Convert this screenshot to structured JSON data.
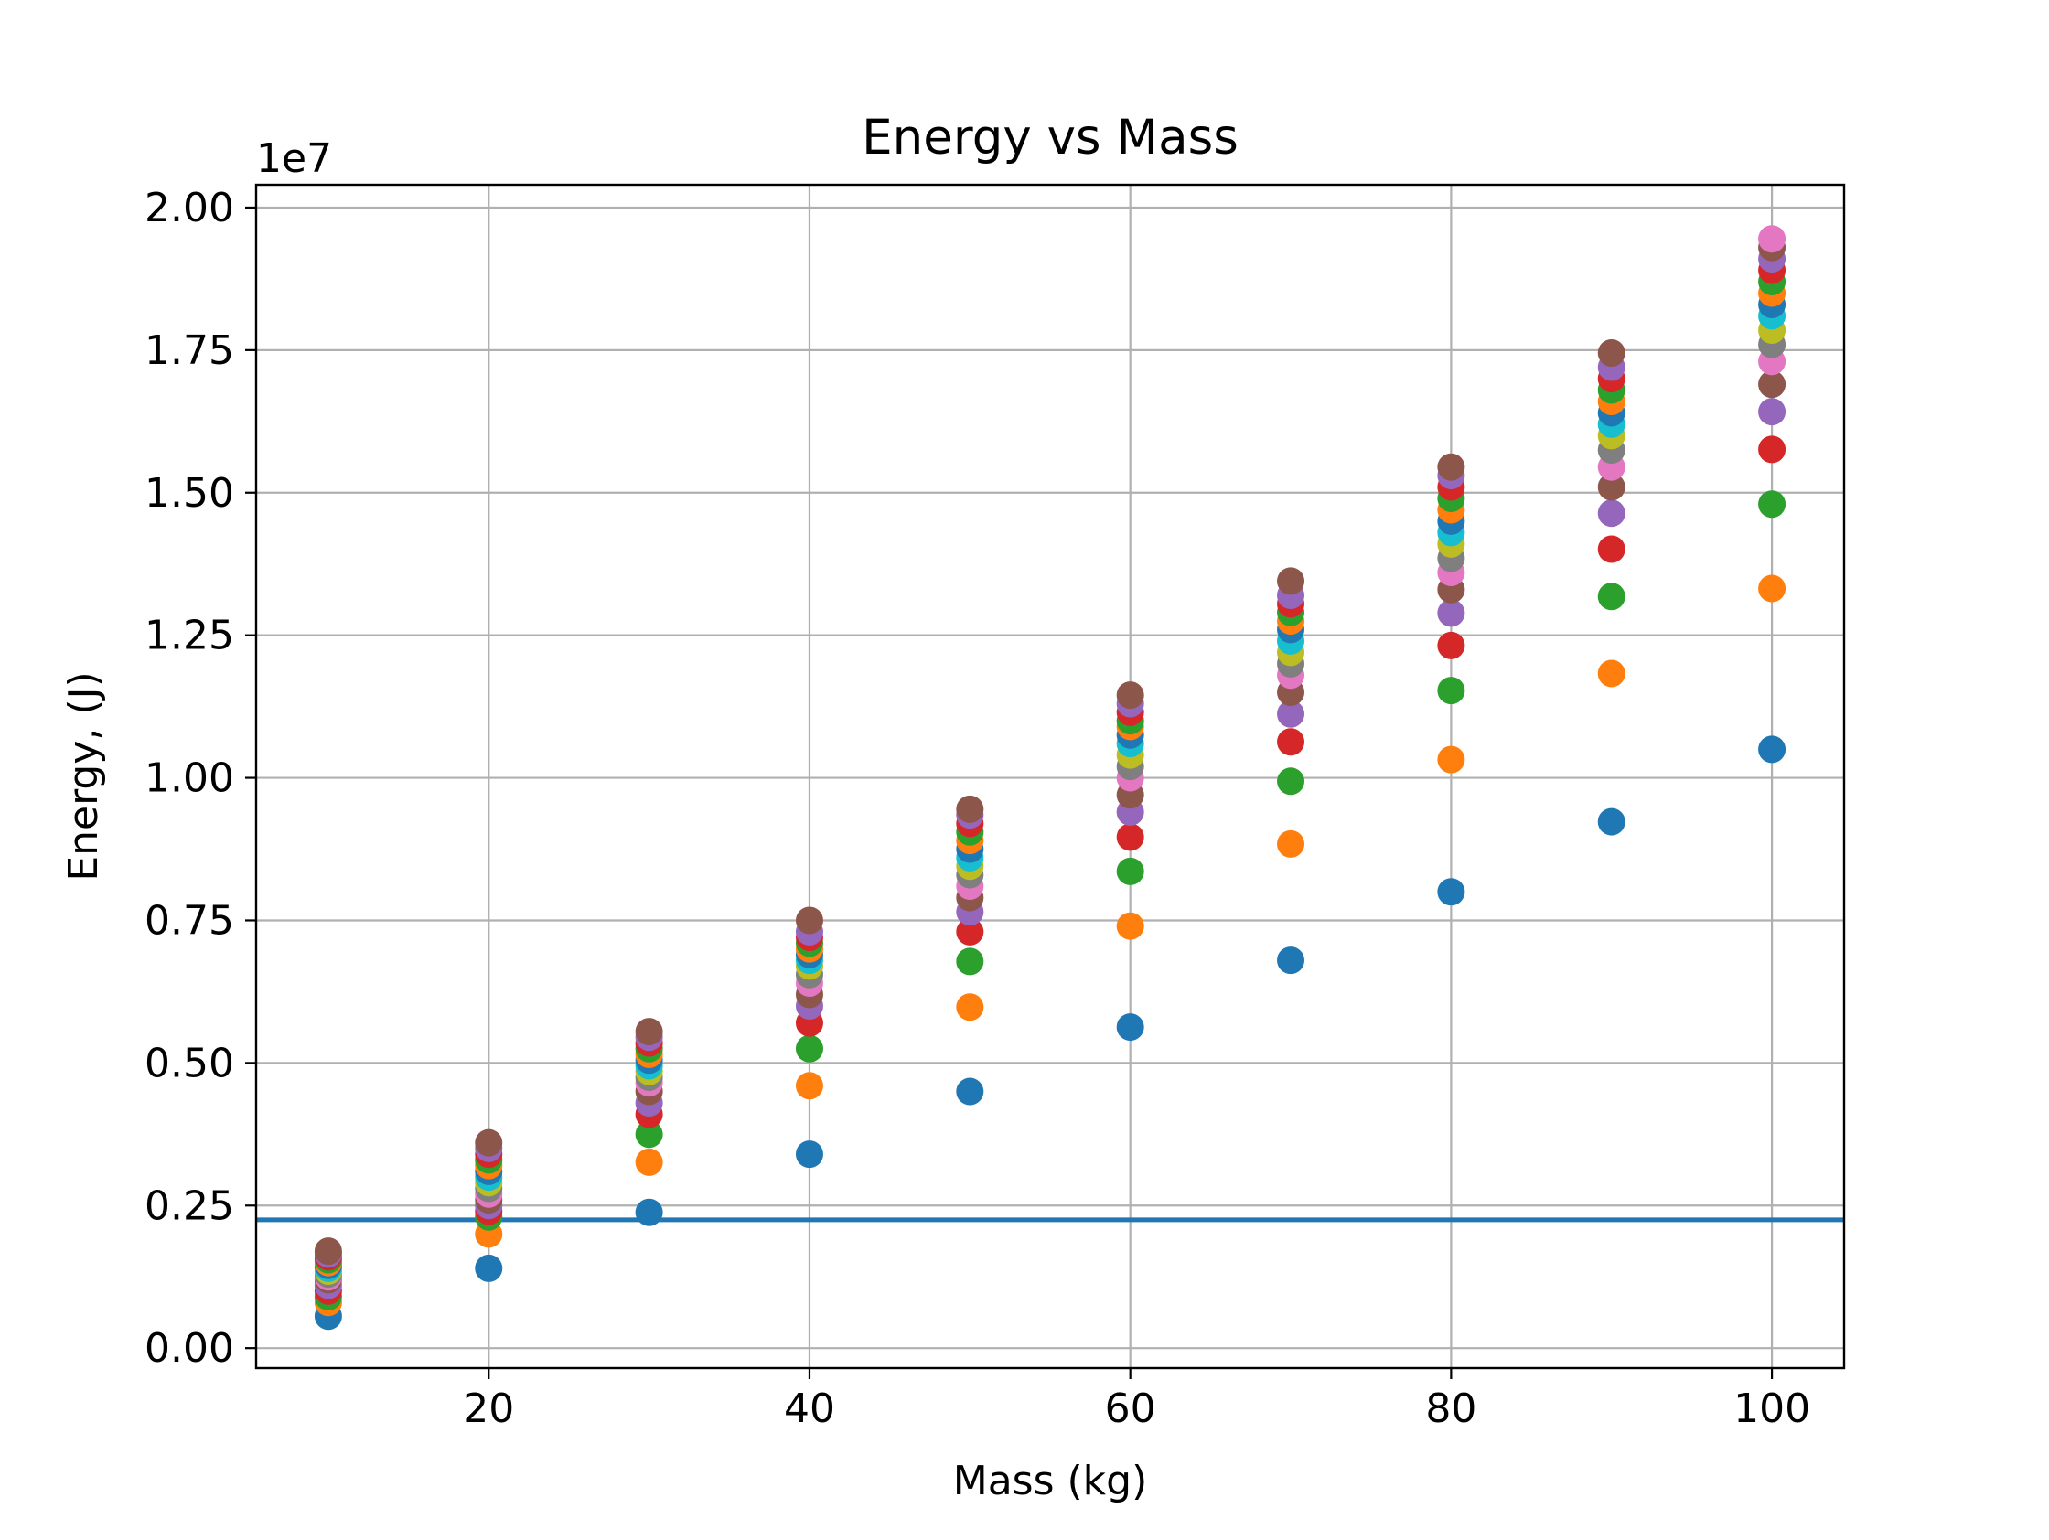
{
  "chart_data": {
    "type": "scatter",
    "title": "Energy vs Mass",
    "xlabel": "Mass (kg)",
    "ylabel": "Energy, (J)",
    "y_offset_label": "1e7",
    "xlim": [
      5.5,
      104.5
    ],
    "ylim": [
      -0.035,
      2.04
    ],
    "y_units": "1e7 J",
    "x_ticks": [
      {
        "value": 20,
        "label": "20"
      },
      {
        "value": 40,
        "label": "40"
      },
      {
        "value": 60,
        "label": "60"
      },
      {
        "value": 80,
        "label": "80"
      },
      {
        "value": 100,
        "label": "100"
      }
    ],
    "y_ticks": [
      {
        "value": 0.0,
        "label": "0.00"
      },
      {
        "value": 0.25,
        "label": "0.25"
      },
      {
        "value": 0.5,
        "label": "0.50"
      },
      {
        "value": 0.75,
        "label": "0.75"
      },
      {
        "value": 1.0,
        "label": "1.00"
      },
      {
        "value": 1.25,
        "label": "1.25"
      },
      {
        "value": 1.5,
        "label": "1.50"
      },
      {
        "value": 1.75,
        "label": "1.75"
      },
      {
        "value": 2.0,
        "label": "2.00"
      }
    ],
    "grid": true,
    "reference_line": {
      "y": 0.225,
      "color": "#1f77b4"
    },
    "palette": [
      "#1f77b4",
      "#ff7f0e",
      "#2ca02c",
      "#d62728",
      "#9467bd",
      "#8c564b",
      "#e377c2",
      "#7f7f7f",
      "#bcbd22",
      "#17becf"
    ],
    "series": [
      {
        "x": 10,
        "y": [
          0.056,
          0.08,
          0.09,
          0.1,
          0.11,
          0.12,
          0.125,
          0.13,
          0.135,
          0.14,
          0.145,
          0.15,
          0.155,
          0.16,
          0.165,
          0.17
        ]
      },
      {
        "x": 20,
        "y": [
          0.14,
          0.2,
          0.23,
          0.24,
          0.25,
          0.26,
          0.27,
          0.28,
          0.29,
          0.3,
          0.31,
          0.32,
          0.33,
          0.34,
          0.35,
          0.36
        ]
      },
      {
        "x": 30,
        "y": [
          0.238,
          0.326,
          0.375,
          0.41,
          0.43,
          0.45,
          0.465,
          0.475,
          0.485,
          0.495,
          0.505,
          0.515,
          0.525,
          0.535,
          0.545,
          0.555
        ]
      },
      {
        "x": 40,
        "y": [
          0.34,
          0.46,
          0.525,
          0.57,
          0.6,
          0.62,
          0.64,
          0.655,
          0.67,
          0.68,
          0.69,
          0.7,
          0.71,
          0.72,
          0.73,
          0.75
        ]
      },
      {
        "x": 50,
        "y": [
          0.45,
          0.598,
          0.678,
          0.73,
          0.765,
          0.79,
          0.81,
          0.83,
          0.845,
          0.86,
          0.875,
          0.89,
          0.905,
          0.92,
          0.935,
          0.945
        ]
      },
      {
        "x": 60,
        "y": [
          0.563,
          0.74,
          0.836,
          0.896,
          0.94,
          0.97,
          1.0,
          1.02,
          1.04,
          1.06,
          1.075,
          1.09,
          1.1,
          1.115,
          1.13,
          1.145
        ]
      },
      {
        "x": 70,
        "y": [
          0.68,
          0.884,
          0.994,
          1.063,
          1.112,
          1.15,
          1.18,
          1.2,
          1.22,
          1.24,
          1.26,
          1.275,
          1.29,
          1.305,
          1.32,
          1.345
        ]
      },
      {
        "x": 80,
        "y": [
          0.8,
          1.032,
          1.153,
          1.232,
          1.289,
          1.33,
          1.36,
          1.385,
          1.41,
          1.43,
          1.45,
          1.47,
          1.49,
          1.51,
          1.53,
          1.545
        ]
      },
      {
        "x": 90,
        "y": [
          0.923,
          1.183,
          1.318,
          1.401,
          1.464,
          1.51,
          1.545,
          1.575,
          1.6,
          1.62,
          1.64,
          1.66,
          1.68,
          1.7,
          1.72,
          1.745
        ]
      },
      {
        "x": 100,
        "y": [
          1.05,
          1.332,
          1.48,
          1.576,
          1.642,
          1.69,
          1.73,
          1.76,
          1.785,
          1.81,
          1.83,
          1.85,
          1.87,
          1.89,
          1.91,
          1.93,
          1.945
        ]
      }
    ]
  }
}
